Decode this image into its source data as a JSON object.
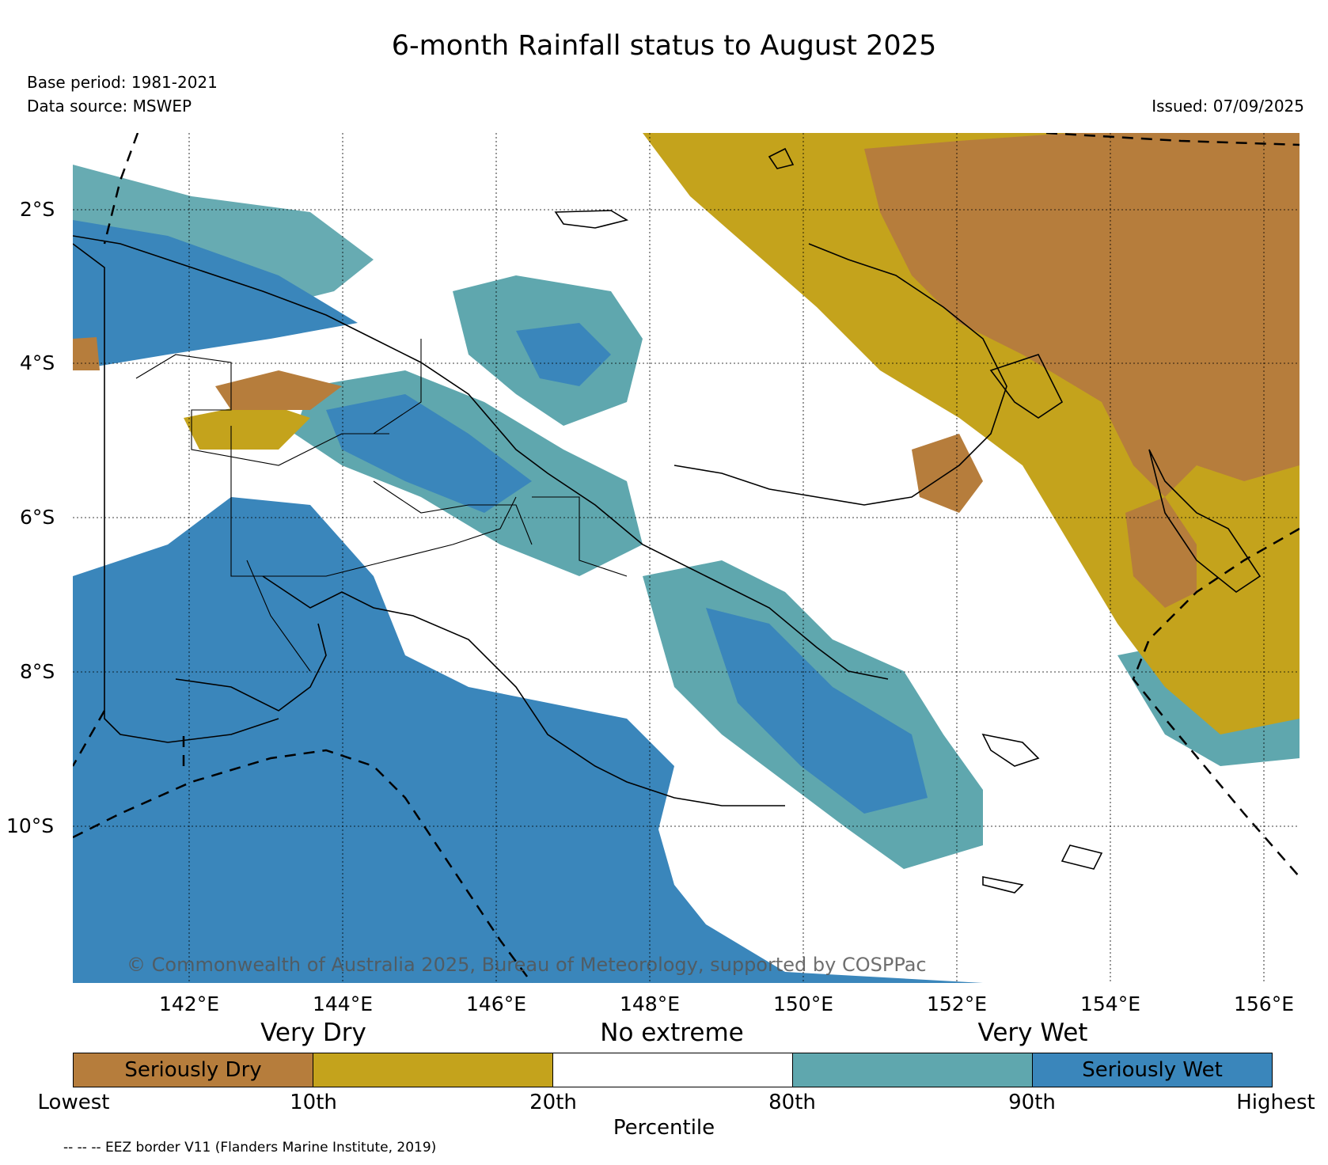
{
  "title": "6-month Rainfall status to August 2025",
  "base_period": "Base period: 1981-2021",
  "data_source": "Data source: MSWEP",
  "issued": "Issued: 07/09/2025",
  "copyright": "© Commonwealth of Australia 2025, Bureau of Meteorology, supported by COSPPac",
  "lat_labels": [
    "2°S",
    "4°S",
    "6°S",
    "8°S",
    "10°S"
  ],
  "lon_labels": [
    "142°E",
    "144°E",
    "146°E",
    "148°E",
    "150°E",
    "152°E",
    "154°E",
    "156°E"
  ],
  "categories": {
    "dry": "Very Dry",
    "mid": "No extreme",
    "wet": "Very Wet"
  },
  "legend": {
    "classes": [
      {
        "label": "Seriously Dry",
        "color": "#b67d3c"
      },
      {
        "label": "",
        "color": "#c4a31c"
      },
      {
        "label": "",
        "color": "#ffffff"
      },
      {
        "label": "",
        "color": "#5fa7ae"
      },
      {
        "label": "Seriously Wet",
        "color": "#3a86bb"
      }
    ],
    "ticks": [
      "Lowest",
      "10th",
      "20th",
      "80th",
      "90th",
      "Highest"
    ],
    "axis_label": "Percentile"
  },
  "eez_note": "-- -- -- EEZ border V11 (Flanders Marine Institute, 2019)"
}
